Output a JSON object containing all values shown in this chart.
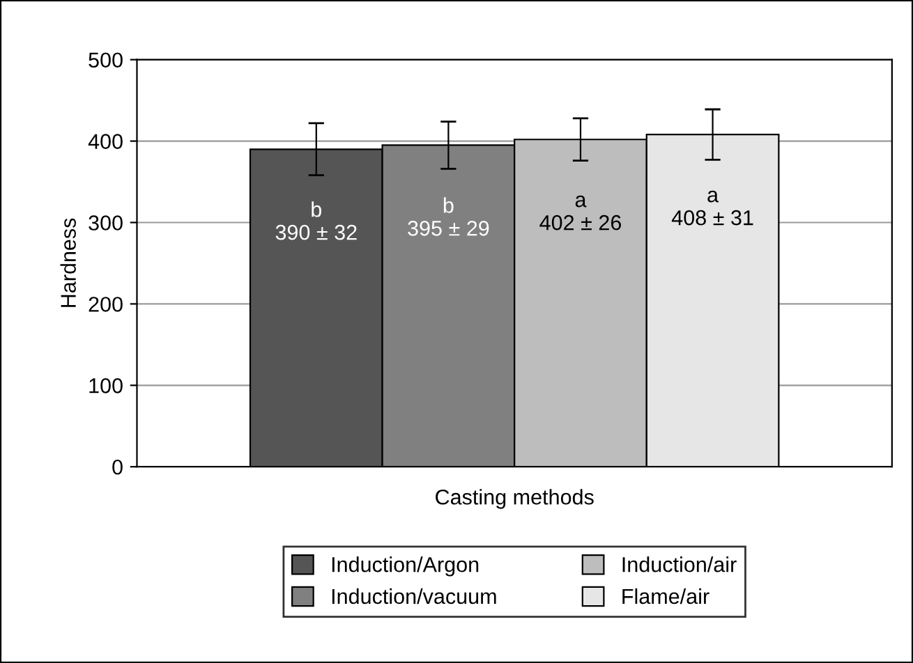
{
  "chart_data": {
    "type": "bar",
    "xlabel": "Casting methods",
    "ylabel": "Hardness",
    "categories": [
      null
    ],
    "series": [
      {
        "name": "Induction/Argon",
        "color": "#555555",
        "values": [
          390
        ],
        "errors": [
          32
        ],
        "value_labels": [
          "b\n390 ± 32"
        ]
      },
      {
        "name": "Induction/vacuum",
        "color": "#808080",
        "values": [
          395
        ],
        "errors": [
          29
        ],
        "value_labels": [
          "b\n395 ± 29"
        ]
      },
      {
        "name": "Induction/air",
        "color": "#bdbdbd",
        "values": [
          402
        ],
        "errors": [
          26
        ],
        "value_labels": [
          "a\n402 ± 26"
        ]
      },
      {
        "name": "Flame/air",
        "color": "#e6e6e6",
        "values": [
          408
        ],
        "errors": [
          31
        ],
        "value_labels": [
          "a\n408 ± 31"
        ]
      }
    ],
    "ylim": [
      0,
      500
    ],
    "yticks": [
      0,
      100,
      200,
      300,
      400,
      500
    ],
    "grid": "y",
    "legend": "bottom"
  }
}
